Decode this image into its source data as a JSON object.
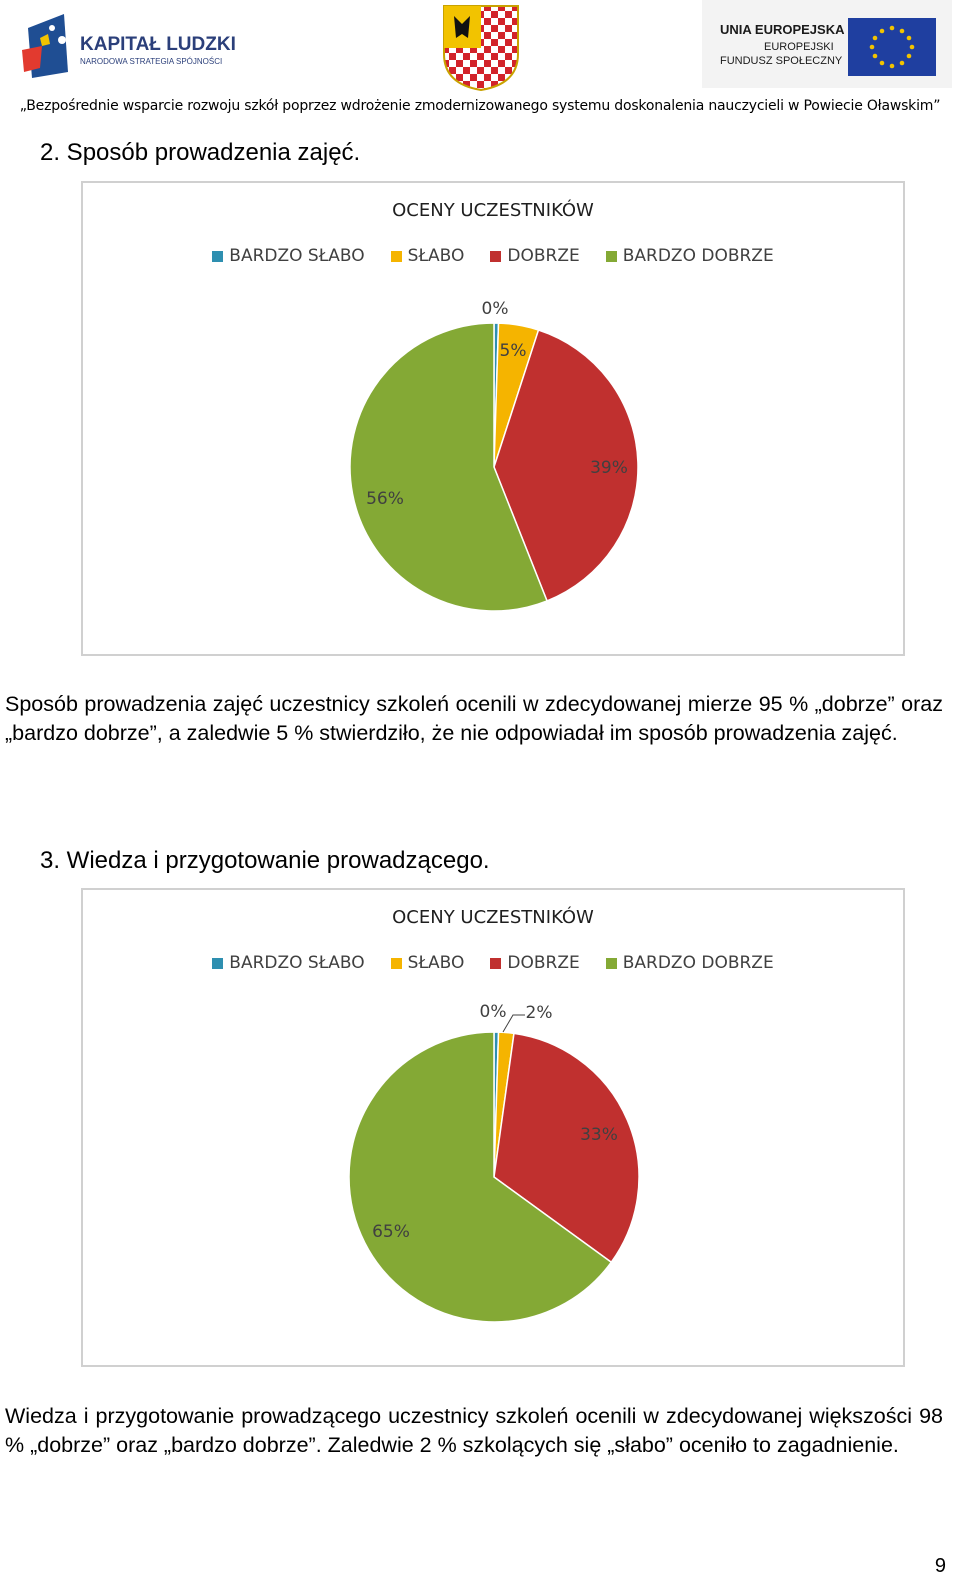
{
  "header": {
    "kl_logo_main": "KAPITAŁ LUDZKI",
    "kl_logo_sub": "NARODOWA STRATEGIA SPÓJNOŚCI",
    "eu_logo_line1": "UNIA EUROPEJSKA",
    "eu_logo_line2": "EUROPEJSKI",
    "eu_logo_line3": "FUNDUSZ SPOŁECZNY",
    "banner": "„Bezpośrednie wsparcie rozwoju szkół poprzez wdrożenie zmodernizowanego systemu doskonalenia nauczycieli w Powiecie Oławskim”"
  },
  "section2": {
    "heading": "2.   Sposób prowadzenia zajęć."
  },
  "section3": {
    "heading": "3.   Wiedza i przygotowanie prowadzącego."
  },
  "colors": {
    "bardzo_slabo": "#2e8fb0",
    "slabo": "#f5b400",
    "dobrze": "#c0302f",
    "bardzo_dobrze": "#84a935"
  },
  "chart_data": [
    {
      "type": "pie",
      "title": "OCENY UCZESTNIKÓW",
      "legend_position": "top",
      "categories": [
        "BARDZO SŁABO",
        "SŁABO",
        "DOBRZE",
        "BARDZO DOBRZE"
      ],
      "values": [
        0.5,
        4.5,
        39,
        56
      ],
      "data_labels": [
        "0%",
        "5%",
        "39%",
        "56%"
      ],
      "colors": [
        "#2e8fb0",
        "#f5b400",
        "#c0302f",
        "#84a935"
      ]
    },
    {
      "type": "pie",
      "title": "OCENY UCZESTNIKÓW",
      "legend_position": "top",
      "categories": [
        "BARDZO SŁABO",
        "SŁABO",
        "DOBRZE",
        "BARDZO DOBRZE"
      ],
      "values": [
        0.5,
        1.7,
        32.8,
        65
      ],
      "data_labels": [
        "0%",
        "2%",
        "33%",
        "65%"
      ],
      "colors": [
        "#2e8fb0",
        "#f5b400",
        "#c0302f",
        "#84a935"
      ]
    }
  ],
  "paragraph1": "Sposób prowadzenia zajęć uczestnicy szkoleń ocenili w zdecydowanej mierze 95 % „dobrze” oraz „bardzo dobrze”, a zaledwie 5 % stwierdziło, że nie odpowiadał im sposób prowadzenia zajęć.",
  "paragraph2": "Wiedza i przygotowanie prowadzącego uczestnicy szkoleń ocenili w zdecydowanej większości 98 % „dobrze” oraz „bardzo dobrze”. Zaledwie 2 %  szkolących się „słabo” oceniło to zagadnienie.",
  "page_number": "9"
}
